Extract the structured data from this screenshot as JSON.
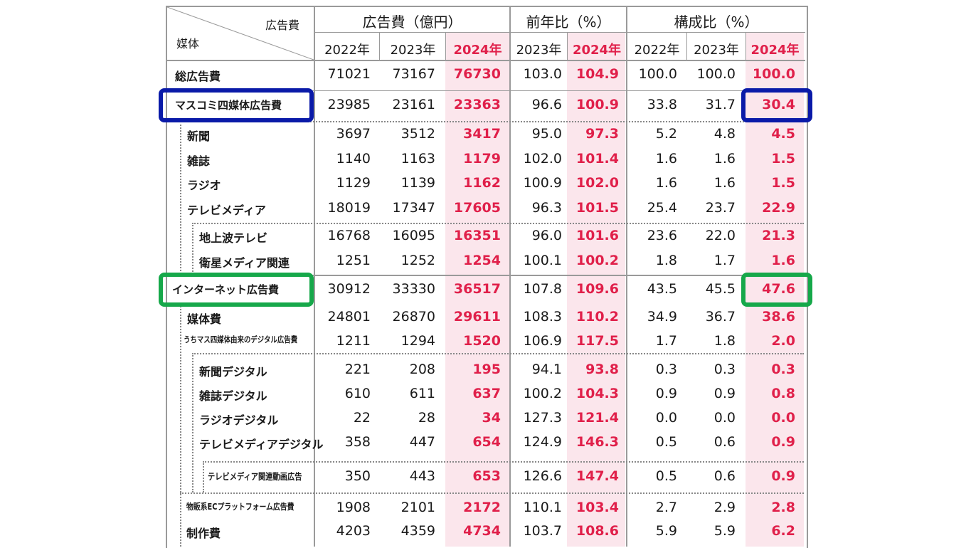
{
  "header": {
    "corner_top": "広告費",
    "corner_bottom": "媒体",
    "group_ad": "広告費（億円）",
    "group_yoy": "前年比（%）",
    "group_share": "構成比（%）",
    "ad_years": [
      "2022年",
      "2023年",
      "2024年"
    ],
    "yoy_years": [
      "2023年",
      "2024年"
    ],
    "share_years": [
      "2022年",
      "2023年",
      "2024年"
    ]
  },
  "rows": [
    {
      "label": "総広告費",
      "v": [
        "71021",
        "73167",
        "76730",
        "103.0",
        "104.9",
        "100.0",
        "100.0",
        "100.0"
      ]
    },
    {
      "label": "マスコミ四媒体広告費",
      "v": [
        "23985",
        "23161",
        "23363",
        "96.6",
        "100.9",
        "33.8",
        "31.7",
        "30.4"
      ]
    },
    {
      "label": "新聞",
      "v": [
        "3697",
        "3512",
        "3417",
        "95.0",
        "97.3",
        "5.2",
        "4.8",
        "4.5"
      ]
    },
    {
      "label": "雑誌",
      "v": [
        "1140",
        "1163",
        "1179",
        "102.0",
        "101.4",
        "1.6",
        "1.6",
        "1.5"
      ]
    },
    {
      "label": "ラジオ",
      "v": [
        "1129",
        "1139",
        "1162",
        "100.9",
        "102.0",
        "1.6",
        "1.6",
        "1.5"
      ]
    },
    {
      "label": "テレビメディア",
      "v": [
        "18019",
        "17347",
        "17605",
        "96.3",
        "101.5",
        "25.4",
        "23.7",
        "22.9"
      ]
    },
    {
      "label": "地上波テレビ",
      "v": [
        "16768",
        "16095",
        "16351",
        "96.0",
        "101.6",
        "23.6",
        "22.0",
        "21.3"
      ]
    },
    {
      "label": "衛星メディア関連",
      "v": [
        "1251",
        "1252",
        "1254",
        "100.1",
        "100.2",
        "1.8",
        "1.7",
        "1.6"
      ]
    },
    {
      "label": "インターネット広告費",
      "v": [
        "30912",
        "33330",
        "36517",
        "107.8",
        "109.6",
        "43.5",
        "45.5",
        "47.6"
      ]
    },
    {
      "label": "媒体費",
      "v": [
        "24801",
        "26870",
        "29611",
        "108.3",
        "110.2",
        "34.9",
        "36.7",
        "38.6"
      ]
    },
    {
      "label": "うちマス四媒体由来のデジタル広告費",
      "v": [
        "1211",
        "1294",
        "1520",
        "106.9",
        "117.5",
        "1.7",
        "1.8",
        "2.0"
      ]
    },
    {
      "label": "新聞デジタル",
      "v": [
        "221",
        "208",
        "195",
        "94.1",
        "93.8",
        "0.3",
        "0.3",
        "0.3"
      ]
    },
    {
      "label": "雑誌デジタル",
      "v": [
        "610",
        "611",
        "637",
        "100.2",
        "104.3",
        "0.9",
        "0.9",
        "0.8"
      ]
    },
    {
      "label": "ラジオデジタル",
      "v": [
        "22",
        "28",
        "34",
        "127.3",
        "121.4",
        "0.0",
        "0.0",
        "0.0"
      ]
    },
    {
      "label": "テレビメディアデジタル",
      "v": [
        "358",
        "447",
        "654",
        "124.9",
        "146.3",
        "0.5",
        "0.6",
        "0.9"
      ]
    },
    {
      "label": "テレビメディア関連動画広告",
      "v": [
        "350",
        "443",
        "653",
        "126.6",
        "147.4",
        "0.5",
        "0.6",
        "0.9"
      ]
    },
    {
      "label": "物販系ECプラットフォーム広告費",
      "v": [
        "1908",
        "2101",
        "2172",
        "110.1",
        "103.4",
        "2.7",
        "2.9",
        "2.8"
      ]
    },
    {
      "label": "制作費",
      "v": [
        "4203",
        "4359",
        "4734",
        "103.7",
        "108.6",
        "5.9",
        "5.9",
        "6.2"
      ]
    }
  ],
  "colors": {
    "highlight_red": "#e0204a",
    "highlight_bg": "#fbe6ec",
    "box_blue": "#0a1aa8",
    "box_green": "#16a84a"
  }
}
